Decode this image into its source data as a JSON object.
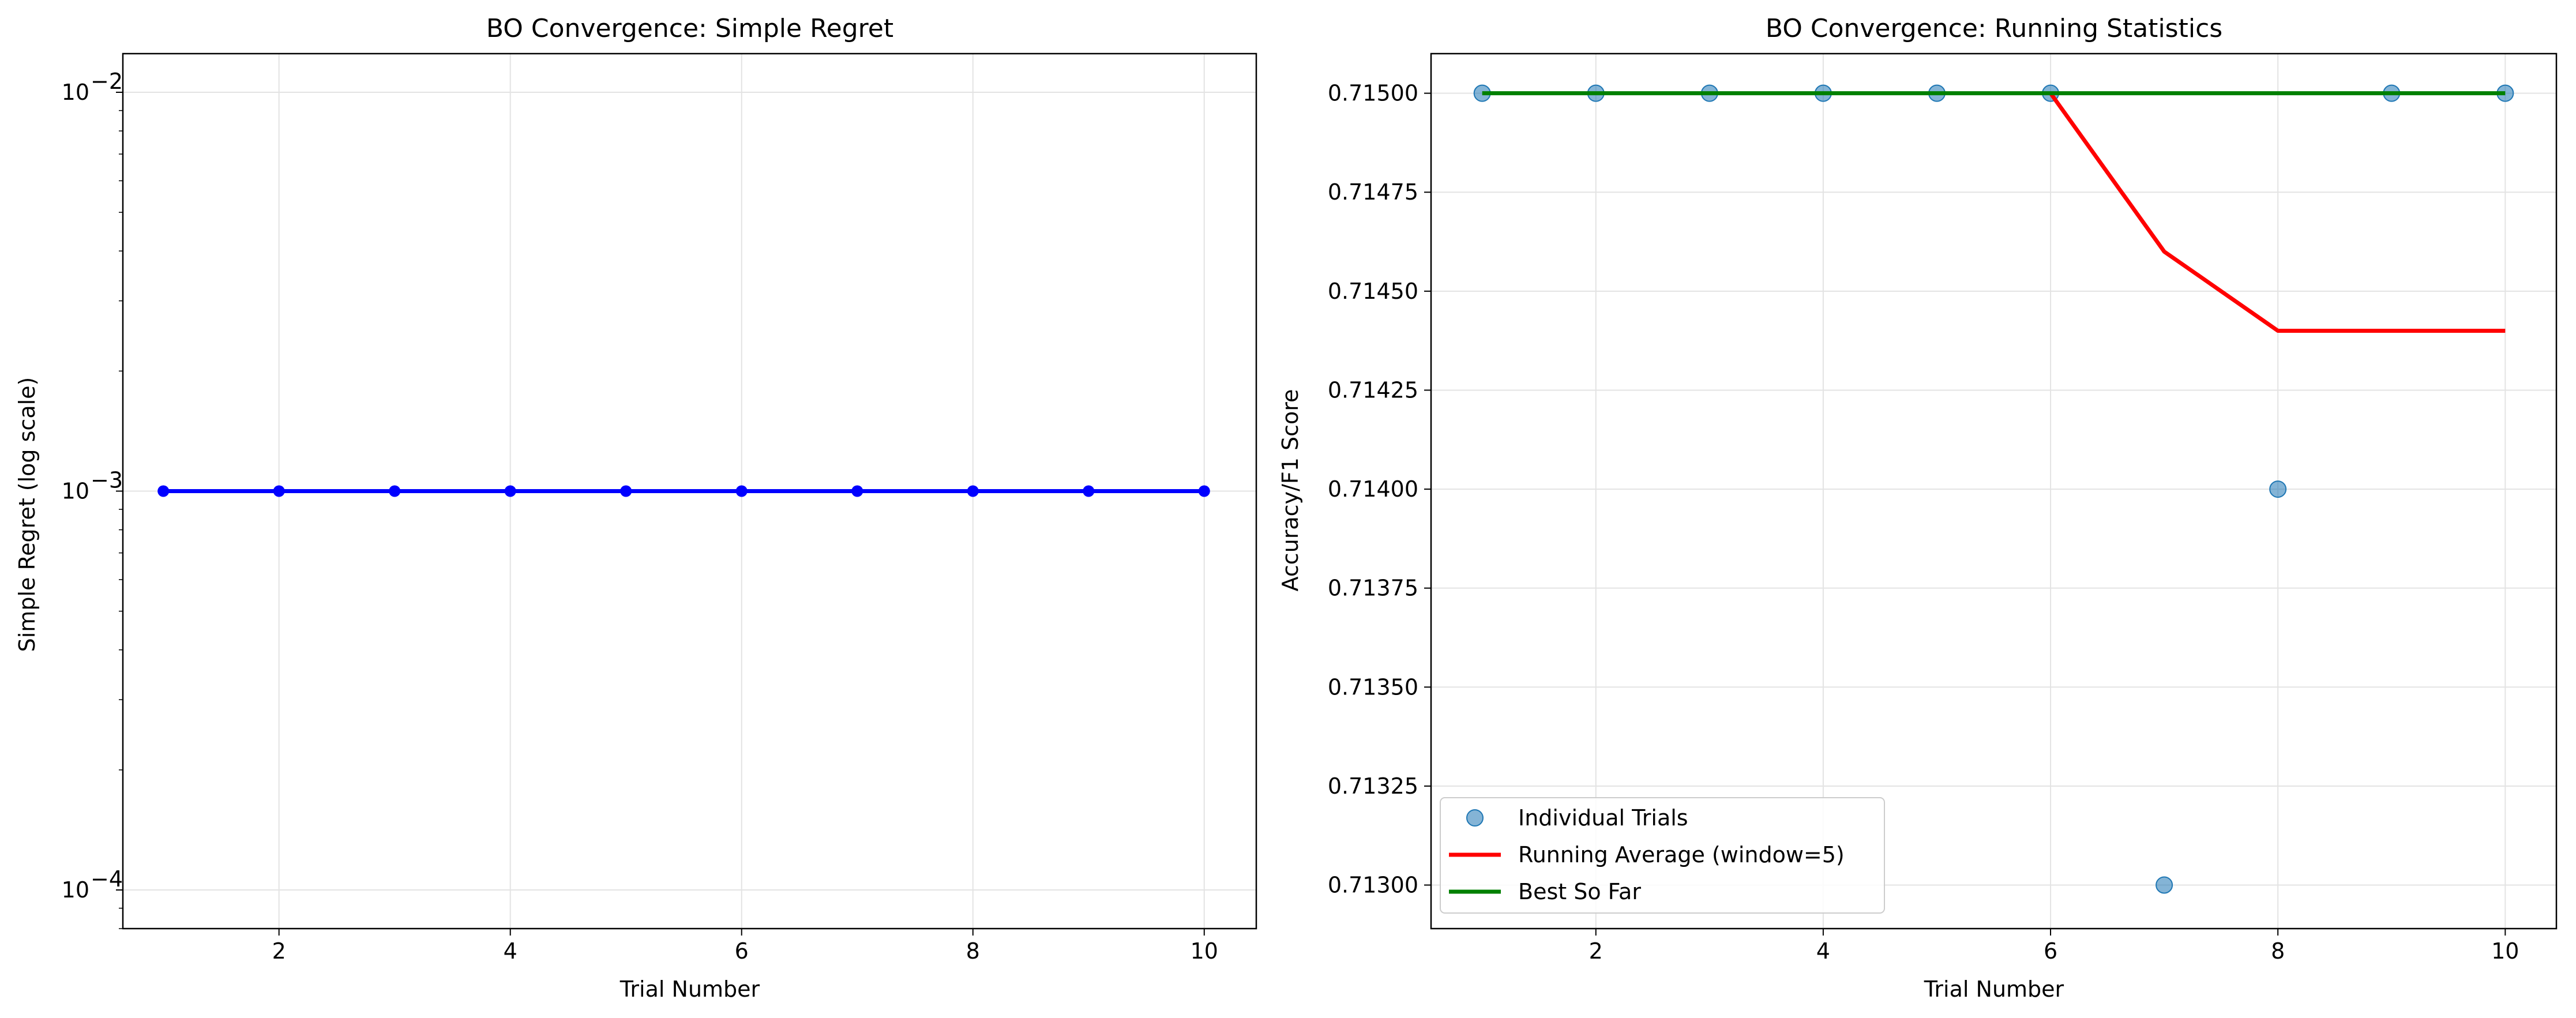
{
  "chart_data": [
    {
      "type": "line",
      "title": "BO Convergence: Simple Regret",
      "xlabel": "Trial Number",
      "ylabel": "Simple Regret (log scale)",
      "yscale": "log",
      "xlim": [
        0.65,
        10.45
      ],
      "ylim": [
        8e-05,
        0.0125
      ],
      "grid": true,
      "xticks": [
        2,
        4,
        6,
        8,
        10
      ],
      "xtick_labels": [
        "2",
        "4",
        "6",
        "8",
        "10"
      ],
      "yticks": [
        0.0001,
        0.001,
        0.01
      ],
      "ytick_labels": [
        {
          "base": "10",
          "exp": "−4"
        },
        {
          "base": "10",
          "exp": "−3"
        },
        {
          "base": "10",
          "exp": "−2"
        }
      ],
      "series": [
        {
          "name": "Simple Regret",
          "color": "#0000ff",
          "marker": "circle",
          "x": [
            1,
            2,
            3,
            4,
            5,
            6,
            7,
            8,
            9,
            10
          ],
          "values": [
            0.001,
            0.001,
            0.001,
            0.001,
            0.001,
            0.001,
            0.001,
            0.001,
            0.001,
            0.001
          ]
        }
      ]
    },
    {
      "type": "line",
      "title": "BO Convergence: Running Statistics",
      "xlabel": "Trial Number",
      "ylabel": "Accuracy/F1 Score",
      "xlim": [
        0.55,
        10.45
      ],
      "ylim": [
        0.71289,
        0.7151
      ],
      "grid": true,
      "legend_position": "lower-left",
      "xticks": [
        2,
        4,
        6,
        8,
        10
      ],
      "xtick_labels": [
        "2",
        "4",
        "6",
        "8",
        "10"
      ],
      "yticks": [
        0.713,
        0.71325,
        0.7135,
        0.71375,
        0.714,
        0.71425,
        0.7145,
        0.71475,
        0.715
      ],
      "ytick_labels": [
        "0.71300",
        "0.71325",
        "0.71350",
        "0.71375",
        "0.71400",
        "0.71425",
        "0.71450",
        "0.71475",
        "0.71500"
      ],
      "series": [
        {
          "name": "Individual Trials",
          "kind": "scatter",
          "color": "#1f77b4",
          "x": [
            1,
            2,
            3,
            4,
            5,
            6,
            7,
            8,
            9,
            10
          ],
          "values": [
            0.715,
            0.715,
            0.715,
            0.715,
            0.715,
            0.715,
            0.713,
            0.714,
            0.715,
            0.715
          ]
        },
        {
          "name": "Running Average (window=5)",
          "kind": "line",
          "color": "#ff0000",
          "x": [
            6,
            7,
            8,
            9,
            10
          ],
          "values": [
            0.715,
            0.7146,
            0.7144,
            0.7144,
            0.7144
          ]
        },
        {
          "name": "Best So Far",
          "kind": "line",
          "color": "#008000",
          "x": [
            1,
            2,
            3,
            4,
            5,
            6,
            7,
            8,
            9,
            10
          ],
          "values": [
            0.715,
            0.715,
            0.715,
            0.715,
            0.715,
            0.715,
            0.715,
            0.715,
            0.715,
            0.715
          ]
        }
      ]
    }
  ]
}
